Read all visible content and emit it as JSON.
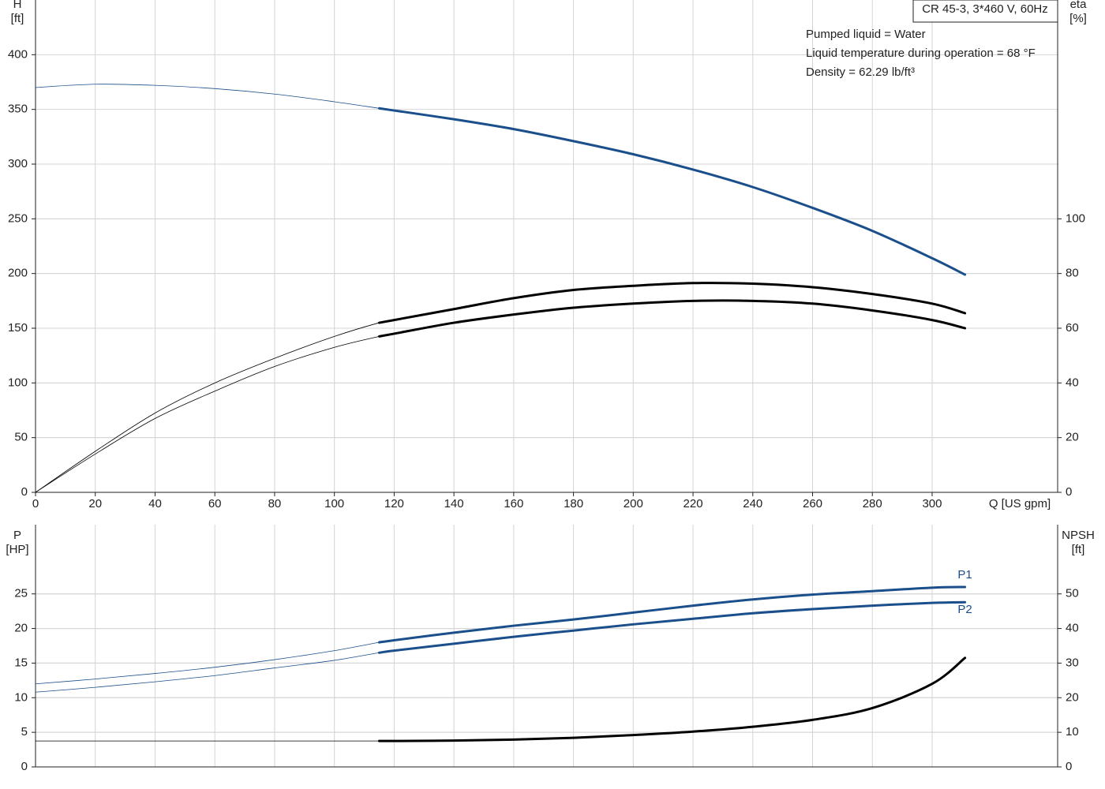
{
  "chart_data": [
    {
      "type": "line",
      "title": "CR 45-3, 3*460 V, 60Hz",
      "annotations": [
        "Pumped liquid = Water",
        "Liquid temperature during operation = 68 °F",
        "Density = 62.29 lb/ft³"
      ],
      "y_label": [
        "H",
        "[ft]"
      ],
      "y2_label": [
        "eta",
        "[%]"
      ],
      "x_label": "Q [US gpm]",
      "x": [
        0,
        20,
        40,
        60,
        80,
        100,
        115,
        120,
        140,
        160,
        180,
        200,
        220,
        240,
        260,
        280,
        300,
        311
      ],
      "xlim": [
        0,
        342
      ],
      "xticks": [
        0,
        20,
        40,
        60,
        80,
        100,
        120,
        140,
        160,
        180,
        200,
        220,
        240,
        260,
        280,
        300
      ],
      "ylim": [
        0,
        450
      ],
      "yticks": [
        0,
        50,
        100,
        150,
        200,
        250,
        300,
        350,
        400
      ],
      "y2lim": [
        0,
        180
      ],
      "y2ticks": [
        0,
        20,
        40,
        60,
        80,
        100
      ],
      "highlight_range": [
        115,
        311
      ],
      "grid": true,
      "series": [
        {
          "color": "#1a4f8b",
          "values": [
            370,
            373,
            372,
            369,
            364,
            357,
            351,
            349,
            341,
            332,
            321,
            309,
            295,
            279,
            260,
            239,
            214,
            199
          ]
        },
        {
          "color": "#000000",
          "axis": "y2",
          "values": [
            0,
            15,
            29,
            40,
            49,
            57,
            62,
            63,
            67,
            71,
            74,
            75.5,
            76.5,
            76.3,
            75,
            72.5,
            69,
            65.5
          ]
        },
        {
          "color": "#000000",
          "axis": "y2",
          "values": [
            0,
            14,
            27,
            37,
            46,
            53,
            57,
            58,
            62,
            65,
            67.5,
            69,
            70,
            70,
            69,
            66.5,
            63,
            60
          ]
        }
      ]
    },
    {
      "type": "line",
      "y_label": [
        "P",
        "[HP]"
      ],
      "y2_label": [
        "NPSH",
        "[ft]"
      ],
      "x": [
        0,
        20,
        40,
        60,
        80,
        100,
        115,
        120,
        140,
        160,
        180,
        200,
        220,
        240,
        260,
        280,
        300,
        311
      ],
      "xlim": [
        0,
        342
      ],
      "ylim": [
        0,
        35
      ],
      "yticks": [
        0,
        5,
        10,
        15,
        20,
        25
      ],
      "y2lim": [
        0,
        70
      ],
      "y2ticks": [
        0,
        10,
        20,
        30,
        40,
        50
      ],
      "highlight_range": [
        115,
        311
      ],
      "grid": true,
      "series": [
        {
          "name": "P1",
          "color": "#1a4f8b",
          "values": [
            12,
            12.7,
            13.5,
            14.4,
            15.5,
            16.8,
            18,
            18.3,
            19.4,
            20.4,
            21.3,
            22.3,
            23.3,
            24.2,
            24.9,
            25.4,
            25.9,
            26
          ]
        },
        {
          "name": "P2",
          "color": "#1a4f8b",
          "values": [
            10.8,
            11.5,
            12.3,
            13.2,
            14.3,
            15.4,
            16.5,
            16.8,
            17.8,
            18.8,
            19.7,
            20.6,
            21.4,
            22.2,
            22.8,
            23.3,
            23.7,
            23.8
          ]
        },
        {
          "color": "#000000",
          "axis": "y2",
          "values": [
            7.5,
            7.5,
            7.5,
            7.5,
            7.5,
            7.5,
            7.5,
            7.5,
            7.6,
            7.9,
            8.4,
            9.2,
            10.2,
            11.6,
            13.6,
            17,
            24,
            31.5
          ]
        }
      ]
    }
  ]
}
